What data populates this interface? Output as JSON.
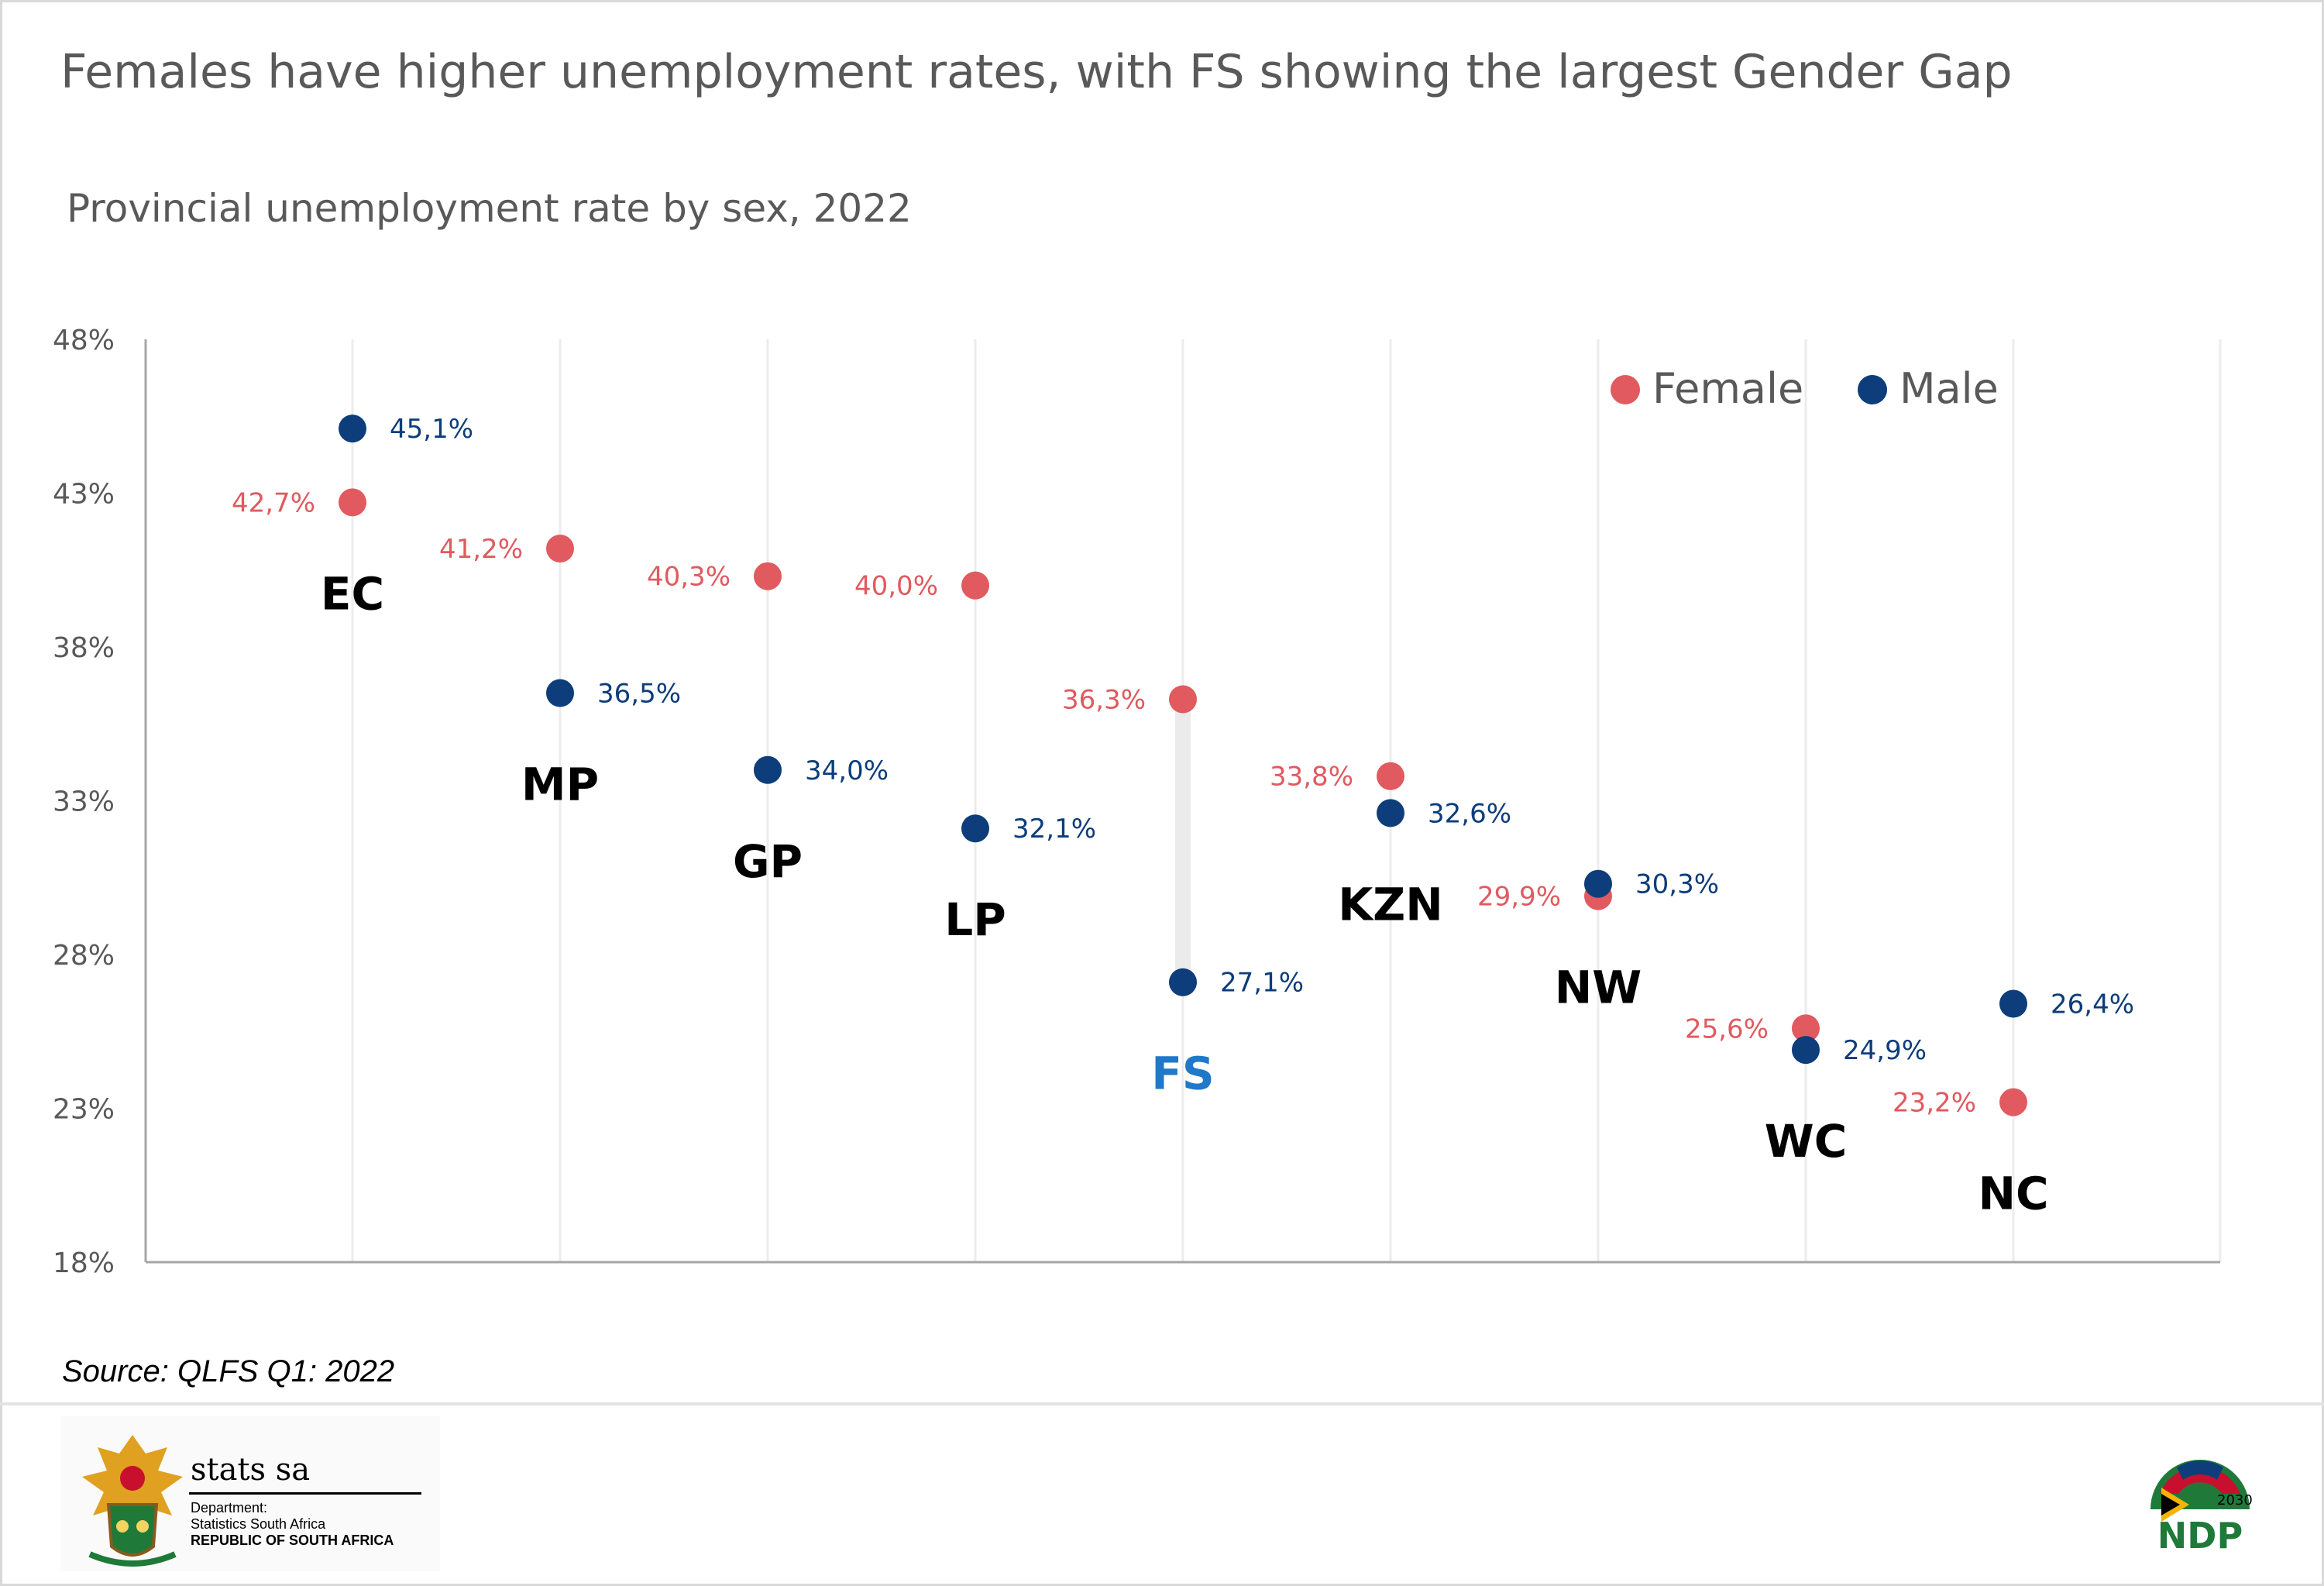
{
  "header": {
    "title": "Females have higher unemployment rates, with FS showing the largest Gender Gap",
    "subtitle": "Provincial unemployment rate by sex, 2022"
  },
  "legend": {
    "female_label": "Female",
    "male_label": "Male"
  },
  "footer": {
    "source": "Source: QLFS Q1: 2022",
    "logo_name": "stats sa",
    "dept_line1": "Department:",
    "dept_line2": "Statistics South Africa",
    "dept_line3": "REPUBLIC OF SOUTH AFRICA",
    "ndp_text": "NDP",
    "ndp_year": "2030"
  },
  "colors": {
    "female": "#e05a5f",
    "male": "#0d3d7a",
    "highlight": "#1f78c8",
    "category": "#000000",
    "axis_text": "#595959",
    "grid": "#ececec",
    "gap_bar": "#ebebeb"
  },
  "chart_data": {
    "type": "scatter",
    "y_tick_labels": [
      "18%",
      "23%",
      "28%",
      "33%",
      "38%",
      "43%",
      "48%"
    ],
    "y_ticks": [
      18,
      23,
      28,
      33,
      38,
      43,
      48
    ],
    "ylim": [
      18,
      48
    ],
    "grid_vertical": true,
    "legend_position": "top-right",
    "highlight_category": "FS",
    "categories": [
      "EC",
      "MP",
      "GP",
      "LP",
      "FS",
      "KZN",
      "NW",
      "WC",
      "NC"
    ],
    "series": [
      {
        "name": "Female",
        "values": [
          42.7,
          41.2,
          40.3,
          40.0,
          36.3,
          33.8,
          29.9,
          25.6,
          23.2
        ],
        "labels": [
          "42,7%",
          "41,2%",
          "40,3%",
          "40,0%",
          "36,3%",
          "33,8%",
          "29,9%",
          "25,6%",
          "23,2%"
        ]
      },
      {
        "name": "Male",
        "values": [
          45.1,
          36.5,
          34.0,
          32.1,
          27.1,
          32.6,
          30.3,
          24.9,
          26.4
        ],
        "labels": [
          "45,1%",
          "36,5%",
          "34,0%",
          "32,1%",
          "27,1%",
          "32,6%",
          "30,3%",
          "24,9%",
          "26,4%"
        ]
      }
    ]
  }
}
